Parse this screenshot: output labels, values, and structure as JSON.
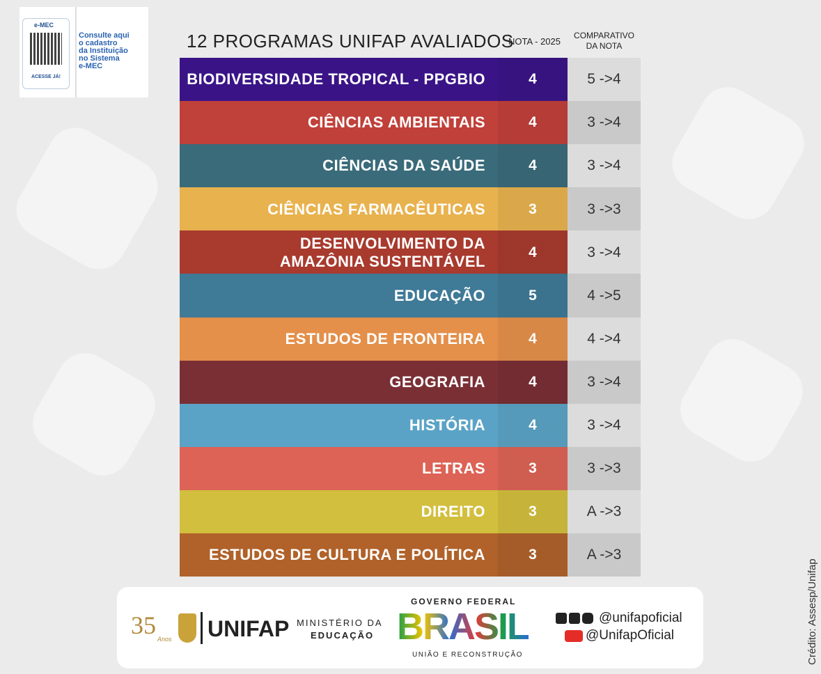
{
  "emec": {
    "logo": "e-MEC",
    "button": "ACESSE JÁ!",
    "text": [
      "Consulte aqui",
      "o cadastro",
      "da Instituição",
      "no Sistema",
      "e-MEC"
    ]
  },
  "table": {
    "title": "12 PROGRAMAS UNIFAP AVALIADOS",
    "col_nota": "NOTA - 2025",
    "col_comp": [
      "COMPARATIVO",
      "DA NOTA"
    ],
    "rows": [
      {
        "name": [
          "BIODIVERSIDADE TROPICAL - PPGBIO"
        ],
        "nota": 4,
        "comparativo": "5 ->4",
        "color": "#3a1487"
      },
      {
        "name": [
          "CIÊNCIAS AMBIENTAIS"
        ],
        "nota": 4,
        "comparativo": "3 ->4",
        "color": "#c0403a"
      },
      {
        "name": [
          "CIÊNCIAS DA SAÚDE"
        ],
        "nota": 4,
        "comparativo": "3 ->4",
        "color": "#3a6b7a"
      },
      {
        "name": [
          "CIÊNCIAS FARMACÊUTICAS"
        ],
        "nota": 3,
        "comparativo": "3 ->3",
        "color": "#e8b24e"
      },
      {
        "name": [
          "DESENVOLVIMENTO DA",
          "AMAZÔNIA SUSTENTÁVEL"
        ],
        "nota": 4,
        "comparativo": "3 ->4",
        "color": "#a83a2e"
      },
      {
        "name": [
          "EDUCAÇÃO"
        ],
        "nota": 5,
        "comparativo": "4 ->5",
        "color": "#3f7a97"
      },
      {
        "name": [
          "ESTUDOS DE FRONTEIRA"
        ],
        "nota": 4,
        "comparativo": "4 ->4",
        "color": "#e48f4a"
      },
      {
        "name": [
          "GEOGRAFIA"
        ],
        "nota": 4,
        "comparativo": "3 ->4",
        "color": "#7a2f35"
      },
      {
        "name": [
          "HISTÓRIA"
        ],
        "nota": 4,
        "comparativo": "3 ->4",
        "color": "#5ba3c6"
      },
      {
        "name": [
          "LETRAS"
        ],
        "nota": 3,
        "comparativo": "3 ->3",
        "color": "#dc6355"
      },
      {
        "name": [
          "DIREITO"
        ],
        "nota": 3,
        "comparativo": "A ->3",
        "color": "#d2bf3e"
      },
      {
        "name": [
          "ESTUDOS DE CULTURA E POLÍTICA"
        ],
        "nota": 3,
        "comparativo": "A ->3",
        "color": "#b0622a"
      }
    ]
  },
  "footer": {
    "anos": "35",
    "anos_sub": "Anos",
    "unifap": "UNIFAP",
    "ministerio": [
      "MINISTÉRIO DA",
      "EDUCAÇÃO"
    ],
    "governo": "GOVERNO FEDERAL",
    "brasil": "BRASIL",
    "uniao": "UNIÃO E RECONSTRUÇÃO",
    "social": [
      "@unifapoficial",
      "@UnifapOficial"
    ]
  },
  "credit": "Crédito: Assesp/Unifap"
}
